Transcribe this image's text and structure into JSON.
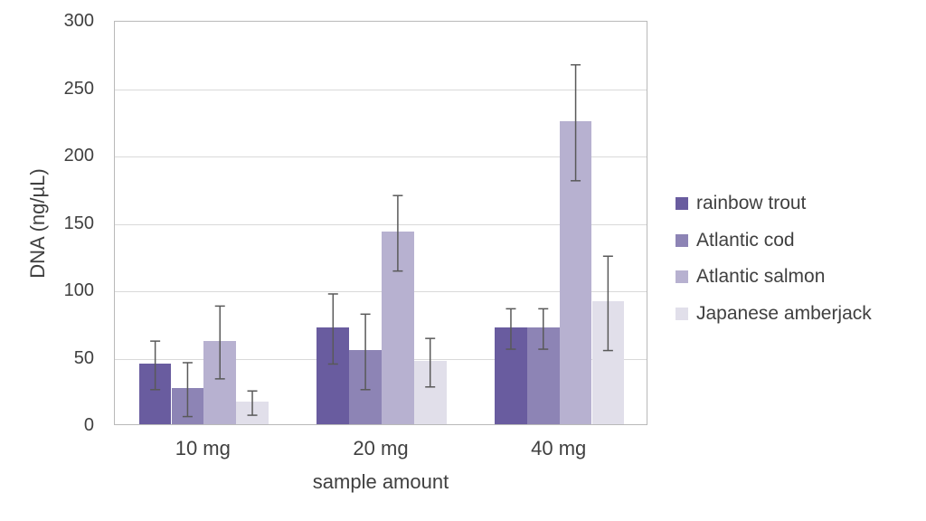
{
  "chart_data": {
    "type": "bar",
    "title": "",
    "xlabel": "sample amount",
    "ylabel": "DNA (ng/µL)",
    "categories": [
      "10 mg",
      "20 mg",
      "40 mg"
    ],
    "series": [
      {
        "name": "rainbow trout",
        "color": "#695c9f",
        "values": [
          45,
          72,
          72
        ],
        "errors": [
          18,
          26,
          15
        ]
      },
      {
        "name": "Atlantic cod",
        "color": "#8d84b5",
        "values": [
          27,
          55,
          72
        ],
        "errors": [
          20,
          28,
          15
        ]
      },
      {
        "name": "Atlantic salmon",
        "color": "#b7b1d0",
        "values": [
          62,
          143,
          225
        ],
        "errors": [
          27,
          28,
          43
        ]
      },
      {
        "name": "Japanese amberjack",
        "color": "#e1dfea",
        "values": [
          17,
          47,
          91
        ],
        "errors": [
          9,
          18,
          35
        ]
      }
    ],
    "ylim": [
      0,
      300
    ],
    "ytick_step": 50,
    "grid": true,
    "legend_position": "right",
    "colors": {
      "error_bar": "#595959",
      "gridline": "#d9d9d9",
      "plot_border": "#b9b9b9",
      "text": "#404040"
    }
  }
}
